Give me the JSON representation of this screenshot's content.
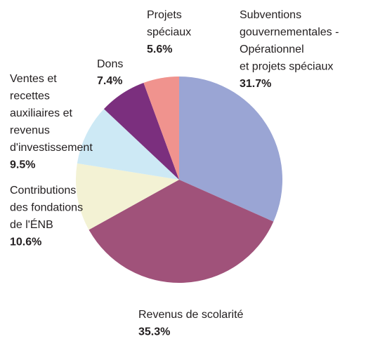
{
  "chart_data": {
    "type": "pie",
    "categories": [
      [
        "Subventions",
        "gouvernementales -",
        "Opérationnel",
        "et projets spéciaux"
      ],
      [
        "Revenus de scolarité"
      ],
      [
        "Contributions",
        "des fondations",
        "de l'ÉNB"
      ],
      [
        "Ventes et",
        "recettes",
        "auxiliaires et",
        "revenus",
        "d'investissement"
      ],
      [
        "Dons"
      ],
      [
        "Projets",
        "spéciaux"
      ]
    ],
    "values": [
      31.7,
      35.3,
      10.6,
      9.5,
      7.4,
      5.6
    ],
    "value_labels": [
      "31.7%",
      "35.3%",
      "10.6%",
      "9.5%",
      "7.4%",
      "5.6%"
    ],
    "colors": [
      "#9aa5d4",
      "#a0527a",
      "#f3f2d4",
      "#cde9f5",
      "#7b2f7e",
      "#f0938e"
    ]
  }
}
